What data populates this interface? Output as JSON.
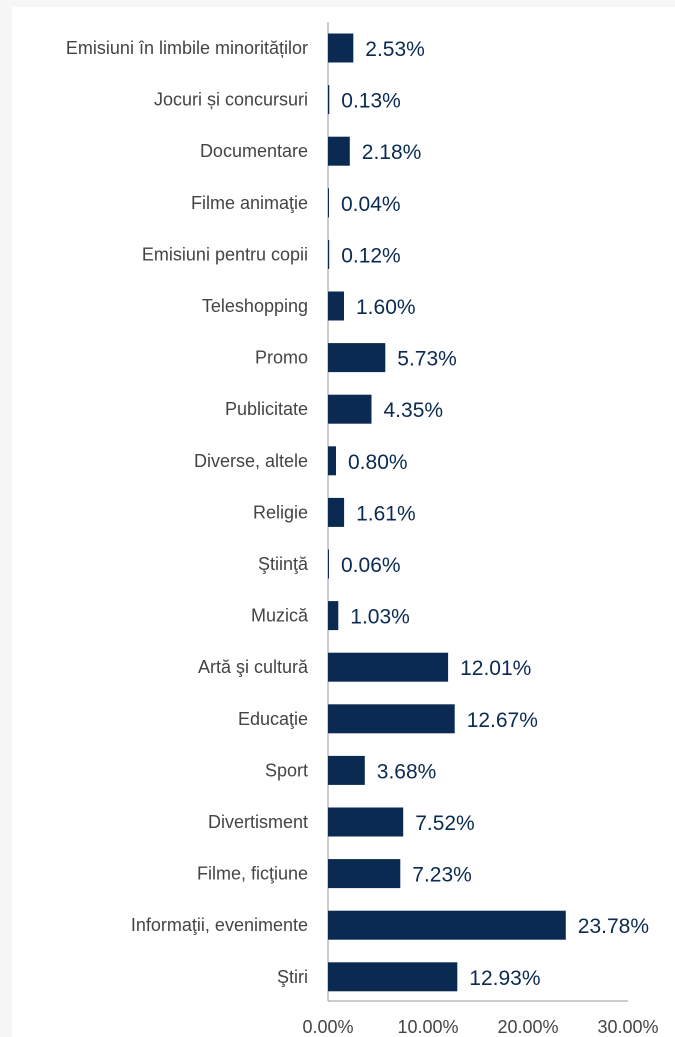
{
  "chart_data": {
    "type": "bar",
    "orientation": "horizontal",
    "title": "",
    "xlabel": "",
    "ylabel": "",
    "xlim": [
      0,
      30
    ],
    "x_ticks": [
      "0.00%",
      "10.00%",
      "20.00%",
      "30.00%"
    ],
    "grid": false,
    "legend": "none",
    "bar_color": "#0b2a52",
    "categories": [
      "Emisiuni în limbile minorităților",
      "Jocuri și concursuri",
      "Documentare",
      "Filme animaţie",
      "Emisiuni pentru copii",
      "Teleshopping",
      "Promo",
      "Publicitate",
      "Diverse, altele",
      "Religie",
      "Ştiinţă",
      "Muzică",
      "Artă şi cultură",
      "Educaţie",
      "Sport",
      "Divertisment",
      "Filme, ficţiune",
      "Informaţii, evenimente",
      "Ştiri"
    ],
    "values": [
      2.53,
      0.13,
      2.18,
      0.04,
      0.12,
      1.6,
      5.73,
      4.35,
      0.8,
      1.61,
      0.06,
      1.03,
      12.01,
      12.67,
      3.68,
      7.52,
      7.23,
      23.78,
      12.93
    ],
    "value_labels": [
      "2.53%",
      "0.13%",
      "2.18%",
      "0.04%",
      "0.12%",
      "1.60%",
      "5.73%",
      "4.35%",
      "0.80%",
      "1.61%",
      "0.06%",
      "1.03%",
      "12.01%",
      "12.67%",
      "3.68%",
      "7.52%",
      "7.23%",
      "23.78%",
      "12.93%"
    ]
  }
}
